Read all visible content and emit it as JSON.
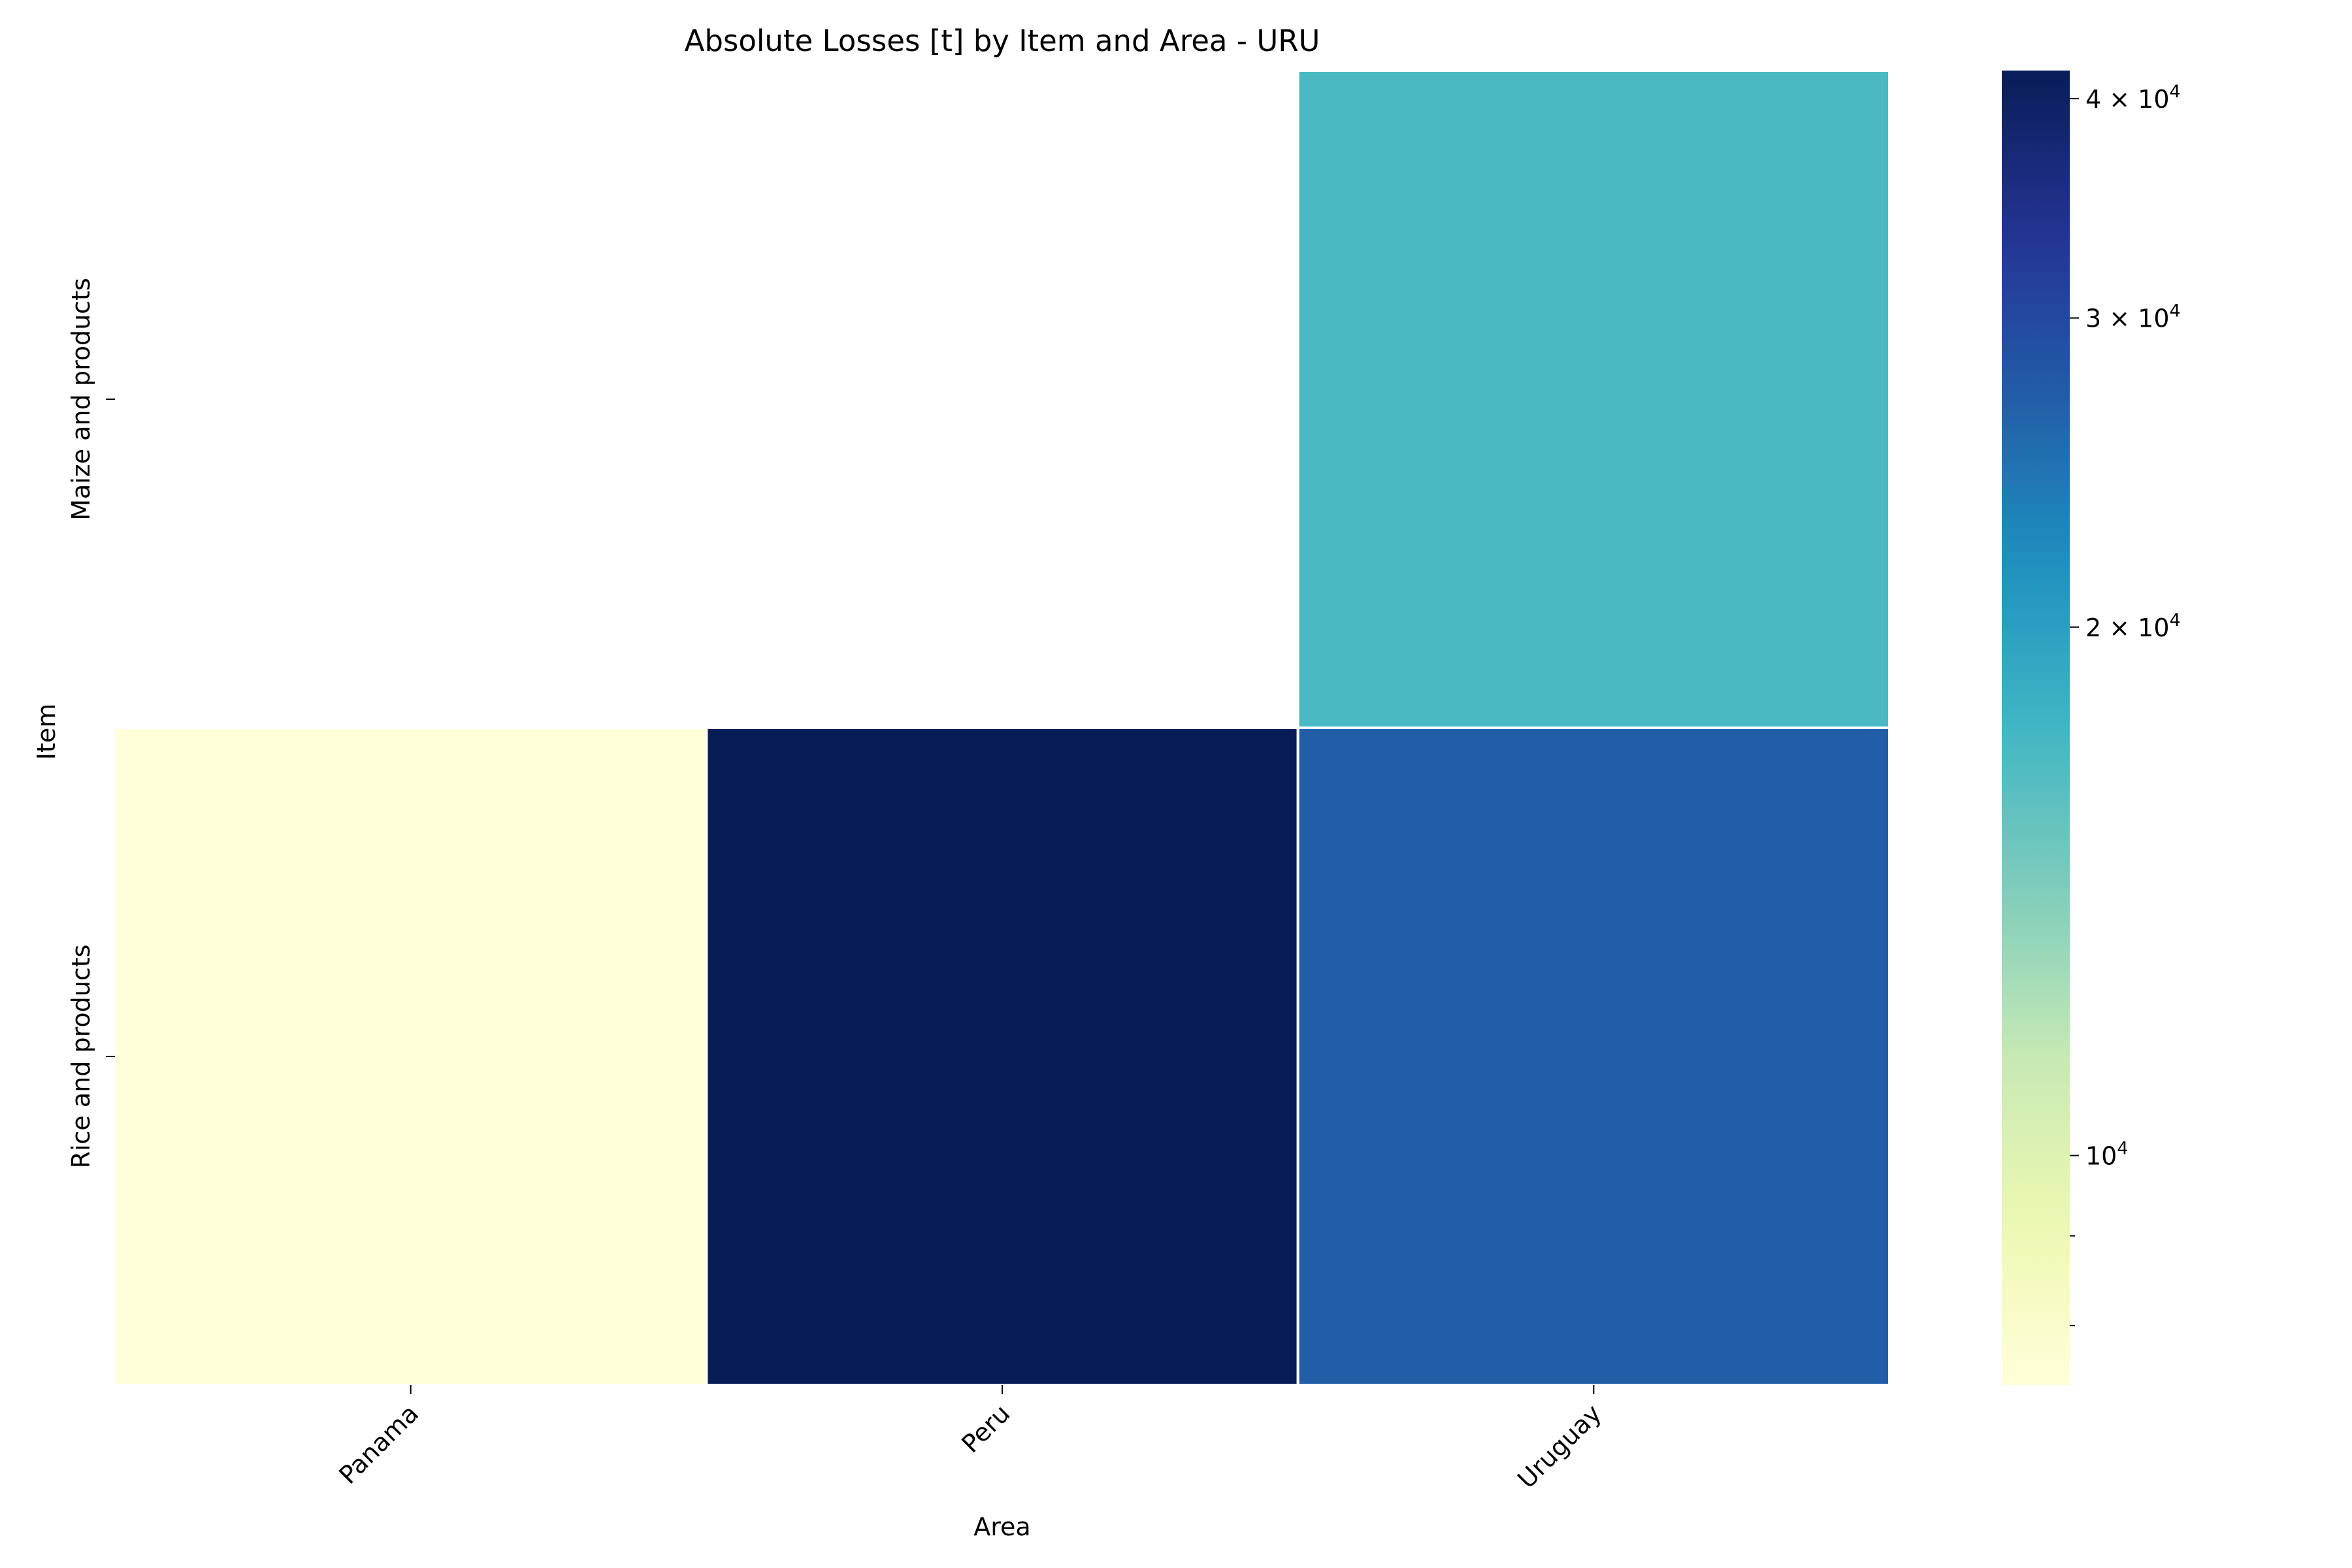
{
  "chart_data": {
    "type": "heatmap",
    "title": "Absolute Losses [t] by Item and Area - URU",
    "xlabel": "Area",
    "ylabel": "Item",
    "x_categories": [
      "Panama",
      "Peru",
      "Uruguay"
    ],
    "y_categories": [
      "Maize and products",
      "Rice and products"
    ],
    "values": [
      [
        null,
        null,
        17000
      ],
      [
        7400,
        41500,
        27000
      ]
    ],
    "colorbar": {
      "scale": "log",
      "range": [
        7400,
        41500
      ],
      "colormap": "YlGnBu",
      "ticks": [
        {
          "value": 10000,
          "label_base": "10",
          "label_exp": "4",
          "mantissa": ""
        },
        {
          "value": 20000,
          "label_base": "10",
          "label_exp": "4",
          "mantissa": "2 × "
        },
        {
          "value": 30000,
          "label_base": "10",
          "label_exp": "4",
          "mantissa": "3 × "
        },
        {
          "value": 40000,
          "label_base": "10",
          "label_exp": "4",
          "mantissa": "4 × "
        }
      ],
      "minor_ticks": [
        8000,
        9000
      ]
    },
    "grid": false
  }
}
